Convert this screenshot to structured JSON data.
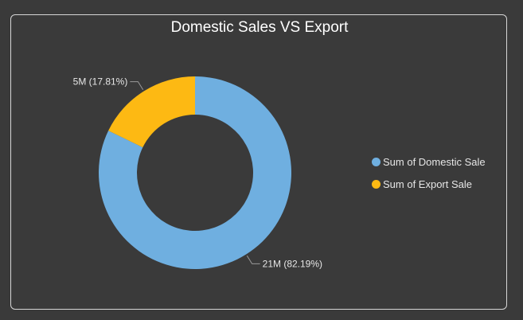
{
  "chart_data": {
    "type": "pie",
    "title": "Domestic Sales VS Export",
    "donut": true,
    "series": [
      {
        "name": "Sum of Domestic Sale",
        "value": 21,
        "percent": 82.19,
        "label": "21M (82.19%)",
        "color": "#6fafe0"
      },
      {
        "name": "Sum of Export Sale",
        "value": 5,
        "percent": 17.81,
        "label": "5M (17.81%)",
        "color": "#fdb913"
      }
    ],
    "legend_position": "right"
  },
  "colors": {
    "background": "#3a3a3a",
    "border": "#d6d6d6",
    "text": "#e6e6e6"
  }
}
